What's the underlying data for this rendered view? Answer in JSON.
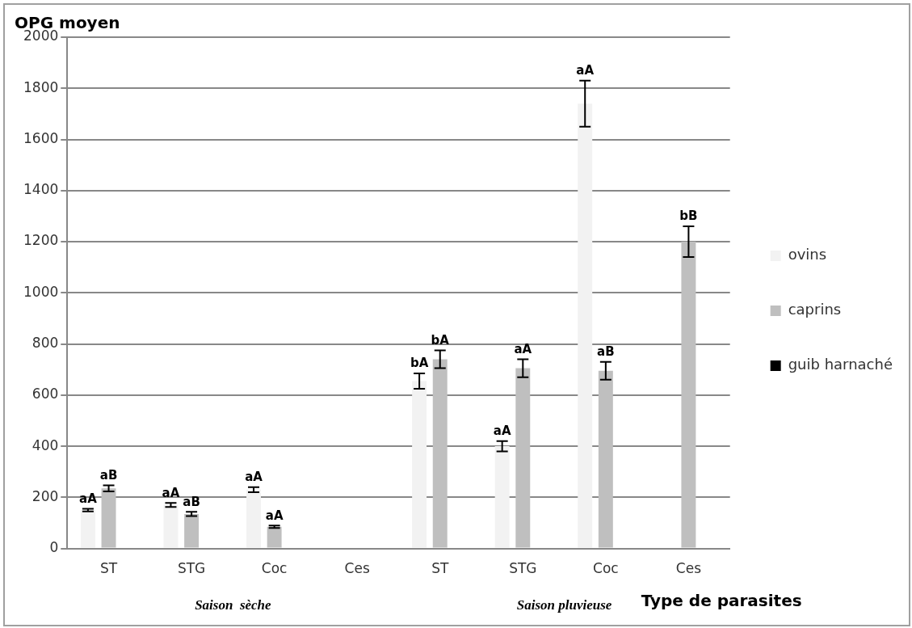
{
  "chart_data": {
    "type": "bar",
    "ylabel": "OPG moyen",
    "xlabel": "Type de parasites",
    "categories": [
      "ST",
      "STG",
      "Coc",
      "Ces",
      "ST",
      "STG",
      "Coc",
      "Ces"
    ],
    "series": [
      {
        "name": "ovins",
        "color": "#f2f2f2",
        "values": [
          150,
          170,
          230,
          null,
          655,
          400,
          1740,
          null
        ],
        "errors": [
          5,
          8,
          10,
          null,
          30,
          20,
          90,
          null
        ],
        "value_labels": [
          "aA",
          "aA",
          "aA",
          null,
          "bA",
          "aA",
          "aA",
          null
        ]
      },
      {
        "name": "caprins",
        "color": "#bfbfbf",
        "values": [
          235,
          135,
          85,
          null,
          740,
          705,
          695,
          1200
        ],
        "errors": [
          12,
          8,
          5,
          null,
          35,
          35,
          35,
          60
        ],
        "value_labels": [
          "aB",
          "aB",
          "aA",
          null,
          "bA",
          "aA",
          "aB",
          "bB"
        ]
      },
      {
        "name": "guib harnaché",
        "color": "#000000",
        "values": [
          null,
          null,
          null,
          null,
          null,
          null,
          null,
          null
        ]
      }
    ],
    "ylim": [
      0,
      2000
    ],
    "yticks": [
      0,
      200,
      400,
      600,
      800,
      1000,
      1200,
      1400,
      1600,
      1800,
      2000
    ],
    "grid": "y",
    "legend": "right",
    "annotations": [
      "Saison  sèche",
      "Saison pluvieuse"
    ]
  }
}
